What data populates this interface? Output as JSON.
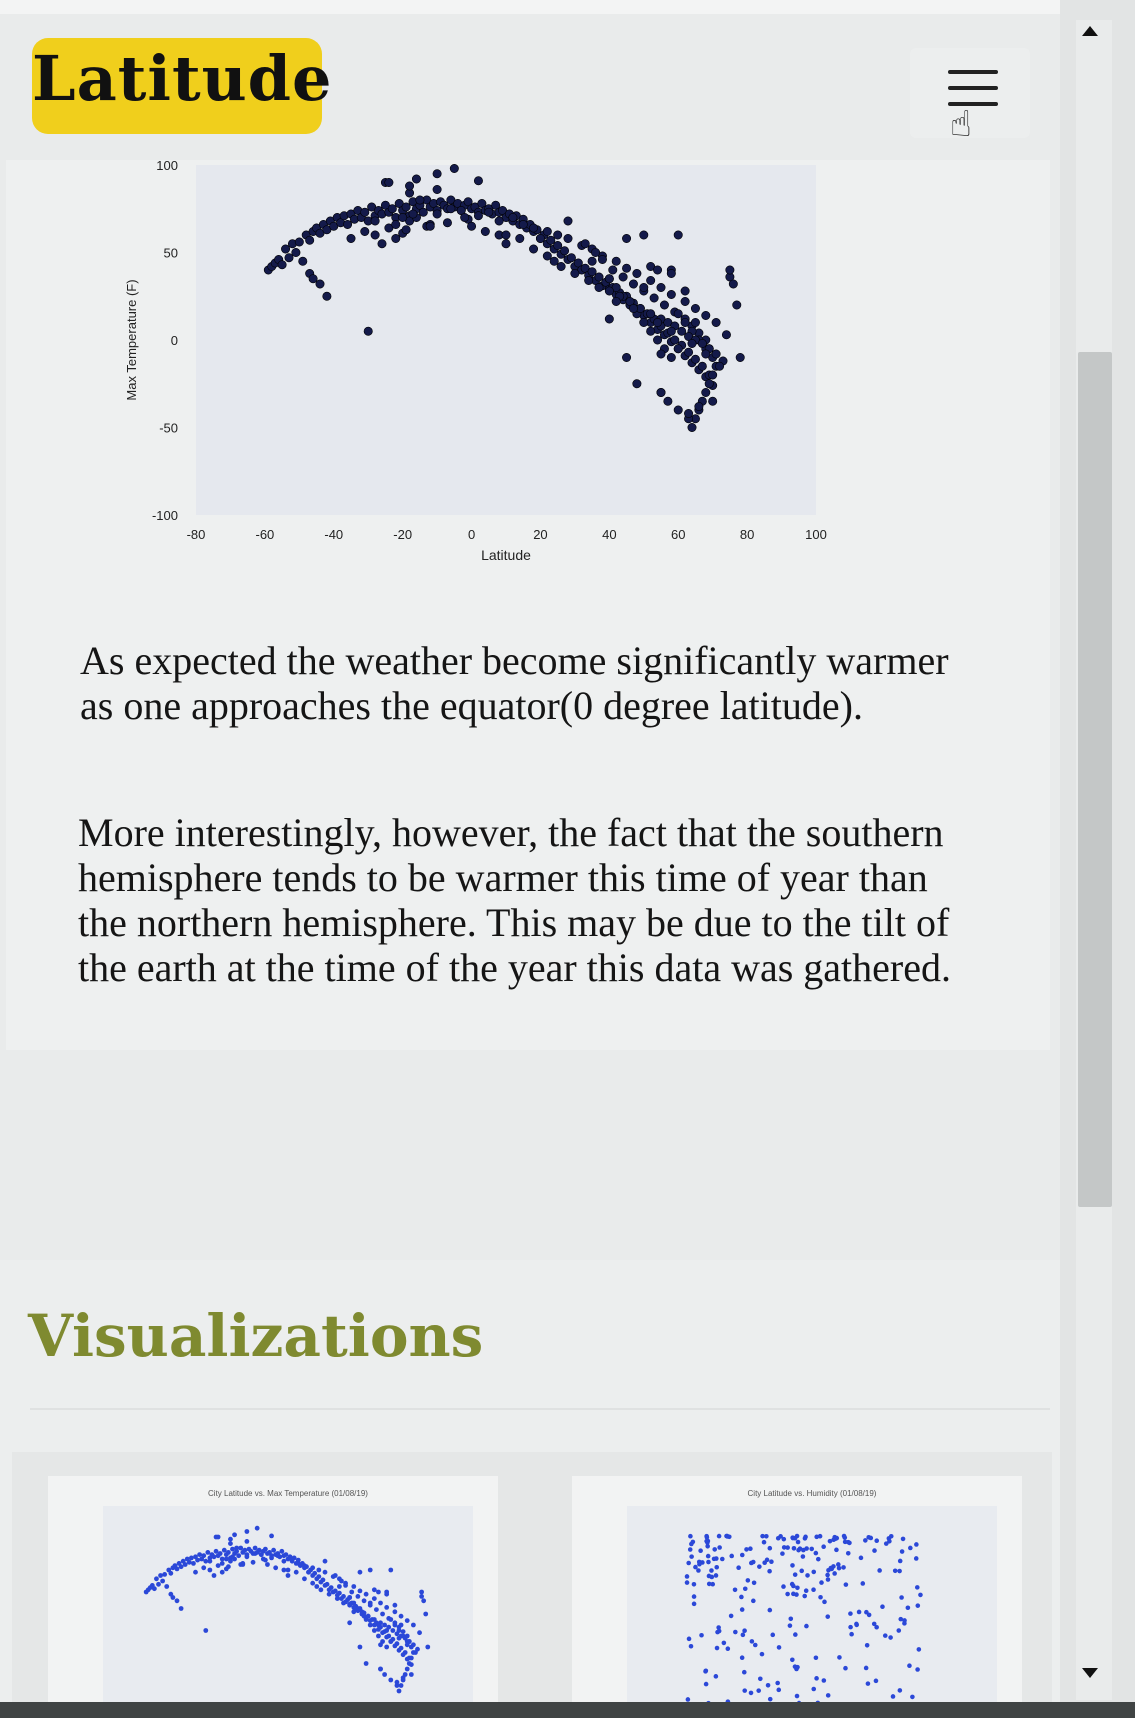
{
  "header": {
    "title": "Latitude",
    "menu_icon": "hamburger-menu-icon",
    "cursor_icon": "hand-pointer-icon",
    "colors": {
      "badge": "#f0cf1c"
    }
  },
  "main_chart": {
    "chart_data": {
      "type": "scatter",
      "title": "",
      "xlabel": "Latitude",
      "ylabel": "Max Temperature (F)",
      "xlim": [
        -80,
        100
      ],
      "ylim": [
        -100,
        100
      ],
      "xticks": [
        "-80",
        "-60",
        "-40",
        "-20",
        "0",
        "20",
        "40",
        "60",
        "80",
        "100"
      ],
      "yticks": [
        "100",
        "50",
        "0",
        "-50",
        "-100"
      ],
      "grid": false,
      "point_color": "#141a4a",
      "series": [
        {
          "x": [
            -54,
            -52,
            -50,
            -48,
            -47,
            -46,
            -45,
            -44,
            -43,
            -42,
            -41,
            -40,
            -39,
            -38,
            -37,
            -36,
            -35,
            -34,
            -33,
            -32,
            -31,
            -30,
            -29,
            -28,
            -27,
            -26,
            -25,
            -24,
            -23,
            -22,
            -21,
            -20,
            -19,
            -18,
            -17,
            -16,
            -15,
            -14,
            -13,
            -12,
            -11,
            -10,
            -9,
            -8,
            -7,
            -6,
            -5,
            -4,
            -3,
            -2,
            -1,
            0,
            1,
            2,
            3,
            4,
            5,
            6,
            7,
            8,
            9,
            10,
            11,
            12,
            13,
            14,
            15,
            16,
            17,
            18,
            19,
            20,
            21,
            22,
            23,
            24,
            25,
            26,
            27,
            28,
            29,
            30,
            31,
            32,
            33,
            34,
            35,
            36,
            37,
            38,
            39,
            40,
            41,
            42,
            43,
            44,
            45,
            46,
            47,
            48,
            49,
            50,
            51,
            52,
            53,
            54,
            55,
            56,
            57,
            58,
            59,
            60,
            61,
            62,
            63,
            64,
            65,
            66,
            67,
            68,
            69,
            70,
            -35,
            -31,
            -28,
            -24,
            -22,
            -20,
            -19,
            -18,
            -16,
            -13,
            -10,
            -7,
            -3,
            -1,
            2,
            5,
            8,
            12,
            15,
            18,
            22,
            25,
            28,
            32,
            35,
            38,
            42,
            45,
            48,
            52,
            55,
            58,
            62,
            65,
            68,
            71,
            -30,
            -20,
            -17,
            -12,
            28,
            33,
            36,
            38,
            41,
            44,
            47,
            50,
            53,
            56,
            59,
            62,
            64,
            66,
            68,
            69,
            70,
            71,
            70,
            69,
            68,
            67,
            66,
            65,
            64,
            63,
            60,
            58,
            56,
            54,
            52,
            50,
            48,
            46,
            44,
            42,
            40,
            58,
            60,
            62,
            64,
            66,
            68,
            45,
            55,
            75,
            78,
            77,
            60,
            62,
            48,
            50,
            -22,
            -25,
            -18,
            -15,
            -10,
            -6,
            -2,
            0,
            4,
            8,
            10,
            14,
            18,
            22,
            24,
            26,
            30,
            34,
            37,
            40,
            43,
            46,
            49,
            52,
            55,
            57,
            59,
            61,
            63,
            65,
            67,
            69,
            71,
            73,
            40,
            55,
            63,
            66,
            70,
            42,
            47,
            54,
            58,
            64,
            68,
            72
          ],
          "y": [
            52,
            55,
            56,
            60,
            57,
            62,
            64,
            61,
            66,
            63,
            68,
            65,
            70,
            67,
            71,
            66,
            72,
            69,
            74,
            70,
            73,
            68,
            76,
            71,
            74,
            72,
            77,
            73,
            75,
            70,
            78,
            74,
            76,
            71,
            79,
            75,
            77,
            73,
            80,
            76,
            78,
            74,
            79,
            77,
            75,
            80,
            76,
            78,
            74,
            77,
            79,
            75,
            76,
            73,
            78,
            74,
            75,
            72,
            77,
            73,
            74,
            70,
            72,
            68,
            71,
            66,
            69,
            64,
            66,
            62,
            63,
            58,
            60,
            55,
            57,
            52,
            54,
            49,
            51,
            46,
            47,
            42,
            44,
            40,
            41,
            37,
            39,
            34,
            36,
            31,
            33,
            29,
            30,
            26,
            27,
            23,
            25,
            20,
            21,
            17,
            18,
            14,
            15,
            10,
            12,
            6,
            8,
            3,
            4,
            -1,
            0,
            -5,
            -3,
            -9,
            -7,
            -13,
            -11,
            -17,
            -15,
            -21,
            -20,
            -26,
            58,
            62,
            60,
            64,
            66,
            61,
            63,
            68,
            70,
            65,
            72,
            67,
            74,
            69,
            71,
            73,
            68,
            70,
            66,
            64,
            62,
            60,
            58,
            54,
            52,
            48,
            45,
            41,
            38,
            34,
            30,
            26,
            22,
            18,
            14,
            10,
            5,
            70,
            72,
            66,
            68,
            55,
            50,
            46,
            40,
            36,
            32,
            28,
            24,
            20,
            16,
            12,
            8,
            4,
            0,
            -5,
            -10,
            -15,
            -20,
            -25,
            -30,
            -35,
            -40,
            -45,
            -50,
            -45,
            -40,
            -10,
            -5,
            0,
            5,
            10,
            15,
            20,
            25,
            30,
            35,
            40,
            15,
            10,
            5,
            0,
            -5,
            -10,
            -30,
            36,
            -10,
            20,
            -5,
            28,
            -25,
            60,
            58,
            90,
            84,
            80,
            86,
            75,
            70,
            65,
            62,
            60,
            55,
            58,
            52,
            48,
            45,
            42,
            38,
            34,
            30,
            28,
            25,
            22,
            18,
            15,
            12,
            10,
            8,
            5,
            2,
            0,
            -2,
            -5,
            -8,
            -12,
            12,
            -8,
            -42,
            -38,
            -35,
            22,
            18,
            10,
            5,
            -2,
            -8,
            -15
          ]
        },
        {
          "x": [
            -59,
            -58,
            -57,
            -56,
            -55,
            -53,
            -51,
            -49,
            -47,
            -44,
            -42,
            -26,
            -24,
            -18,
            -16,
            -10,
            -5,
            2,
            10,
            20,
            35,
            40,
            50,
            55,
            65,
            74,
            76,
            75,
            -46,
            -28,
            -12,
            57,
            60,
            45,
            52,
            54,
            58
          ],
          "y": [
            40,
            42,
            44,
            46,
            43,
            47,
            50,
            45,
            38,
            32,
            25,
            55,
            90,
            88,
            92,
            95,
            98,
            91,
            60,
            58,
            45,
            35,
            30,
            -30,
            10,
            3,
            32,
            40,
            35,
            68,
            65,
            -35,
            60,
            58,
            42,
            40,
            38
          ]
        }
      ]
    }
  },
  "text": {
    "para1": "As expected the weather become significantly warmer as one approaches the equator(0 degree latitude).",
    "para2": "More interestingly, however, the fact that the southern hemisphere tends to be warmer this time of year than the northern hemisphere. This may be due to the tilt of the earth at the time of the year this data was gathered."
  },
  "visualizations": {
    "title": "Visualizations",
    "colors": {
      "title": "#7f8a30",
      "points": "#2b48d8"
    },
    "thumbnails": [
      {
        "name": "latitude-vs-max-temp-thumbnail",
        "title": "City Latitude vs. Max Temperature (01/08/19)"
      },
      {
        "name": "latitude-vs-humidity-thumbnail",
        "title": "City Latitude vs. Humidity (01/08/19)"
      }
    ]
  },
  "scrollbar": {
    "up_icon": "arrow-up-icon",
    "down_icon": "arrow-down-icon"
  }
}
